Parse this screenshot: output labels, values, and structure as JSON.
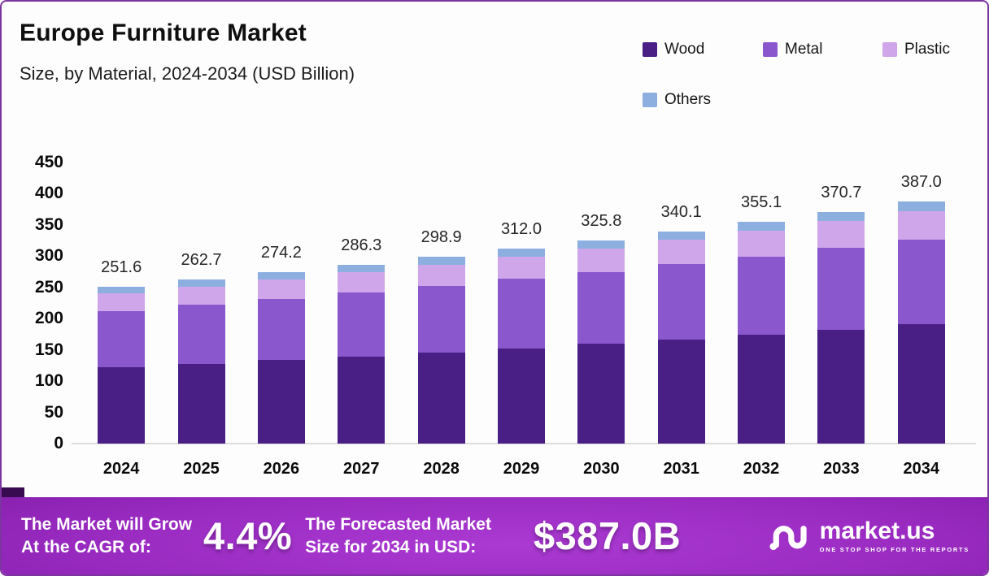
{
  "header": {
    "title": "Europe Furniture Market",
    "subtitle": "Size, by Material, 2024-2034 (USD Billion)"
  },
  "chart_data": {
    "type": "bar",
    "stacked": true,
    "title": "Europe Furniture Market Size, by Material, 2024-2034 (USD Billion)",
    "xlabel": "",
    "ylabel": "",
    "ylim": [
      0,
      450
    ],
    "y_ticks": [
      450,
      400,
      350,
      300,
      250,
      200,
      150,
      100,
      50,
      0
    ],
    "grid": false,
    "legend_position": "top-right",
    "categories": [
      "2024",
      "2025",
      "2026",
      "2027",
      "2028",
      "2029",
      "2030",
      "2031",
      "2032",
      "2033",
      "2034"
    ],
    "series": [
      {
        "name": "Wood",
        "color": "#491f86",
        "values": [
          122.0,
          127.6,
          133.4,
          139.5,
          145.9,
          152.6,
          159.6,
          166.9,
          174.5,
          182.5,
          190.8
        ]
      },
      {
        "name": "Metal",
        "color": "#8a57cd",
        "values": [
          90.6,
          94.3,
          98.2,
          102.3,
          106.5,
          110.9,
          115.5,
          120.3,
          125.3,
          130.4,
          135.8
        ]
      },
      {
        "name": "Plastic",
        "color": "#cfa6e9",
        "values": [
          28.2,
          29.6,
          31.0,
          32.5,
          34.1,
          35.7,
          37.5,
          39.3,
          41.2,
          43.2,
          45.3
        ]
      },
      {
        "name": "Others",
        "color": "#8cafe0",
        "values": [
          10.8,
          11.2,
          11.6,
          12.0,
          12.4,
          12.8,
          13.2,
          13.6,
          14.1,
          14.6,
          15.1
        ]
      }
    ],
    "totals": [
      "251.6",
      "262.7",
      "274.2",
      "286.3",
      "298.9",
      "312.0",
      "325.8",
      "340.1",
      "355.1",
      "370.7",
      "387.0"
    ]
  },
  "banner": {
    "growth_label_line1": "The Market will Grow",
    "growth_label_line2": "At the CAGR of:",
    "cagr_value": "4.4%",
    "forecast_label_line1": "The Forecasted Market",
    "forecast_label_line2": "Size for 2034 in USD:",
    "forecast_value": "$387.0B",
    "brand_name": "market.us",
    "brand_tagline": "ONE STOP SHOP FOR THE REPORTS"
  },
  "colors": {
    "card_border": "#7c35a0",
    "baseline": "#dcdcdc",
    "value_label": "#262626",
    "banner_center": "#aa3ad2",
    "banner_edge": "#500b72"
  }
}
